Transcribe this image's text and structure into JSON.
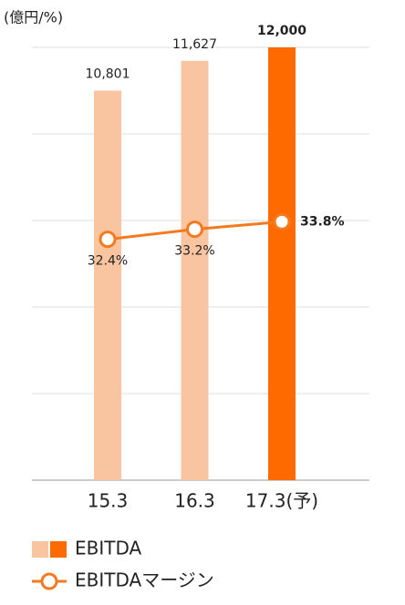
{
  "chart_data": {
    "type": "bar-line",
    "y_label": "(億円/%)",
    "categories": [
      "15.3",
      "16.3",
      "17.3(予)"
    ],
    "ylim": [
      0,
      12000
    ],
    "yticks": [
      0,
      2400,
      4800,
      7200,
      9600,
      12000
    ],
    "grid": true,
    "y2lim": [
      13.2,
      47.7
    ],
    "series": [
      {
        "name": "EBITDA",
        "type": "bar",
        "colors": [
          "#f9c4a0",
          "#f9c4a0",
          "#ff6a00"
        ],
        "values": [
          10801,
          11627,
          12000
        ],
        "value_labels": [
          "10,801",
          "11,627",
          "12,000"
        ]
      },
      {
        "name": "EBITDAマージン",
        "type": "line",
        "axis": "y2",
        "color": "#f47a20",
        "values": [
          32.4,
          33.2,
          33.8
        ],
        "value_labels": [
          "32.4%",
          "33.2%",
          "33.8%"
        ]
      }
    ]
  }
}
